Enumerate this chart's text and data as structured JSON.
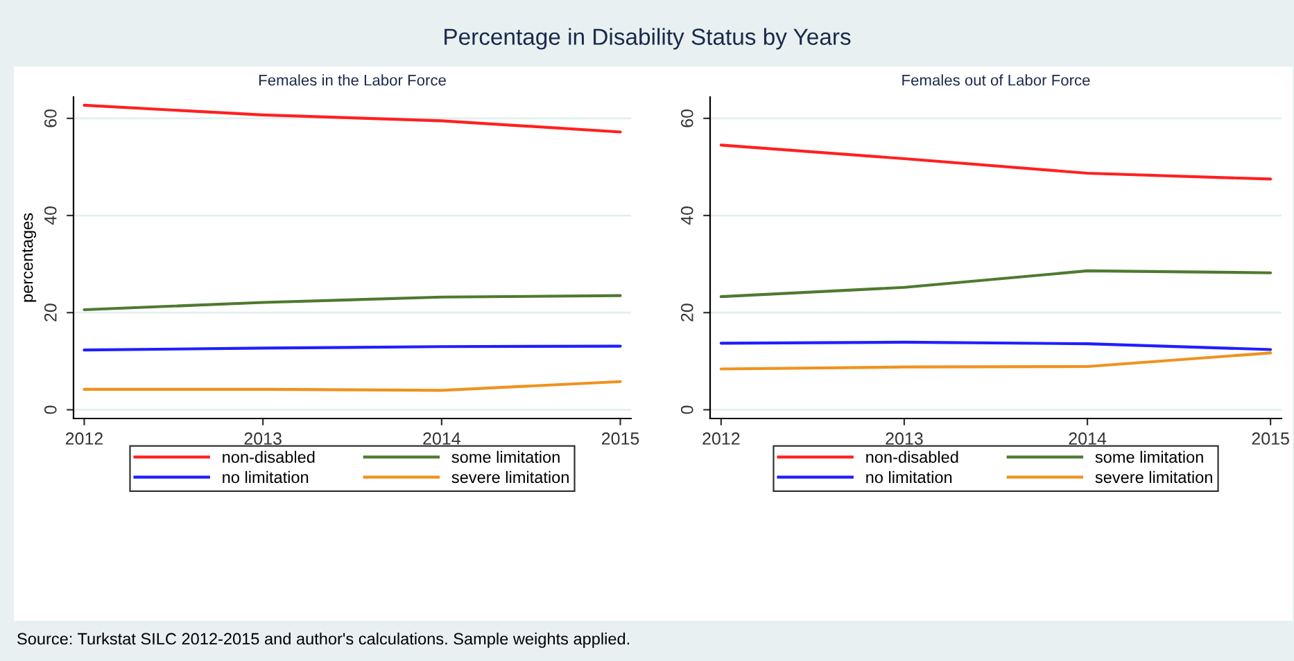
{
  "chart_data": [
    {
      "type": "line",
      "title": "Percentage in Disability Status by Years",
      "subtitle": "Females in the Labor Force",
      "ylabel": "percentages",
      "x": [
        2012,
        2013,
        2014,
        2015
      ],
      "xlim": [
        2011.94,
        2015.06
      ],
      "xticks": [
        2012,
        2013,
        2014,
        2015
      ],
      "ylim": [
        -1.8,
        64.4
      ],
      "yticks": [
        0,
        20,
        40,
        60
      ],
      "grid": "y",
      "legend": "bottom",
      "annotations": [
        "Source: Turkstat SILC 2012-2015 and author's calculations. Sample weights applied."
      ],
      "series": [
        {
          "name": "non-disabled",
          "color": "#ff2020",
          "values": [
            62.7,
            60.7,
            59.5,
            57.2
          ]
        },
        {
          "name": "no limitation",
          "color": "#1f1fff",
          "values": [
            12.3,
            12.7,
            13.0,
            13.1
          ]
        },
        {
          "name": "some limitation",
          "color": "#4e7a30",
          "values": [
            20.6,
            22.1,
            23.2,
            23.5
          ]
        },
        {
          "name": "severe limitation",
          "color": "#f0921e",
          "values": [
            4.2,
            4.2,
            4.0,
            5.8
          ]
        }
      ]
    },
    {
      "type": "line",
      "subtitle": "Females out of Labor Force",
      "x": [
        2012,
        2013,
        2014,
        2015
      ],
      "xlim": [
        2011.94,
        2015.06
      ],
      "xticks": [
        2012,
        2013,
        2014,
        2015
      ],
      "ylim": [
        -1.8,
        64.4
      ],
      "yticks": [
        0,
        20,
        40,
        60
      ],
      "grid": "y",
      "legend": "bottom",
      "series": [
        {
          "name": "non-disabled",
          "color": "#ff2020",
          "values": [
            54.5,
            51.7,
            48.7,
            47.5
          ]
        },
        {
          "name": "no limitation",
          "color": "#1f1fff",
          "values": [
            13.7,
            13.9,
            13.6,
            12.4
          ]
        },
        {
          "name": "some limitation",
          "color": "#4e7a30",
          "values": [
            23.3,
            25.2,
            28.6,
            28.2
          ]
        },
        {
          "name": "severe limitation",
          "color": "#f0921e",
          "values": [
            8.4,
            8.8,
            8.9,
            11.7
          ]
        }
      ]
    }
  ]
}
